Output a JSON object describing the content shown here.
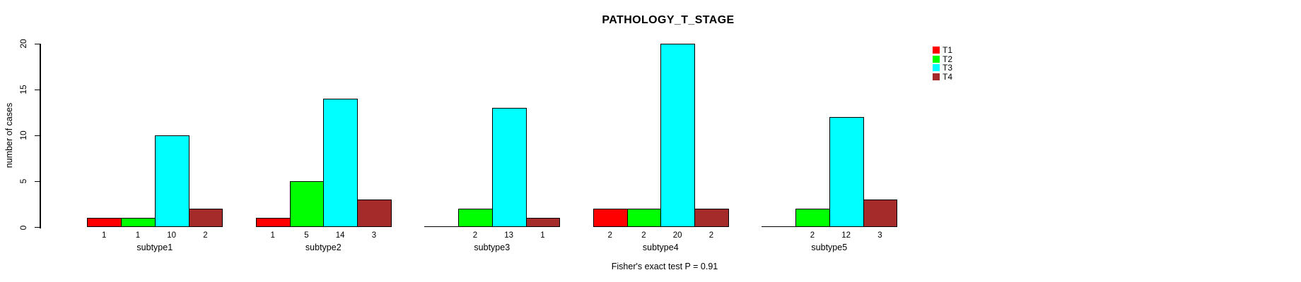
{
  "chart_data": {
    "type": "bar",
    "title": "PATHOLOGY_T_STAGE",
    "xlabel": "",
    "ylabel": "number of cases",
    "ylim": [
      0,
      20
    ],
    "yticks": [
      0,
      5,
      10,
      15,
      20
    ],
    "grid": false,
    "legend_position": "top-right",
    "annotation": "Fisher's exact test P = 0.91",
    "categories": [
      "subtype1",
      "subtype2",
      "subtype3",
      "subtype4",
      "subtype5"
    ],
    "series": [
      {
        "name": "T1",
        "color": "#ff0000",
        "values": [
          1,
          1,
          0,
          2,
          0
        ]
      },
      {
        "name": "T2",
        "color": "#00ff00",
        "values": [
          1,
          5,
          2,
          2,
          2
        ]
      },
      {
        "name": "T3",
        "color": "#00ffff",
        "values": [
          10,
          14,
          13,
          20,
          12
        ]
      },
      {
        "name": "T4",
        "color": "#a52a2a",
        "values": [
          2,
          3,
          1,
          2,
          3
        ]
      }
    ],
    "bar_value_labels_shown": true,
    "zero_values_unlabeled": true
  },
  "colors": {
    "background": "#ffffff",
    "axis": "#000000",
    "text": "#000000"
  }
}
